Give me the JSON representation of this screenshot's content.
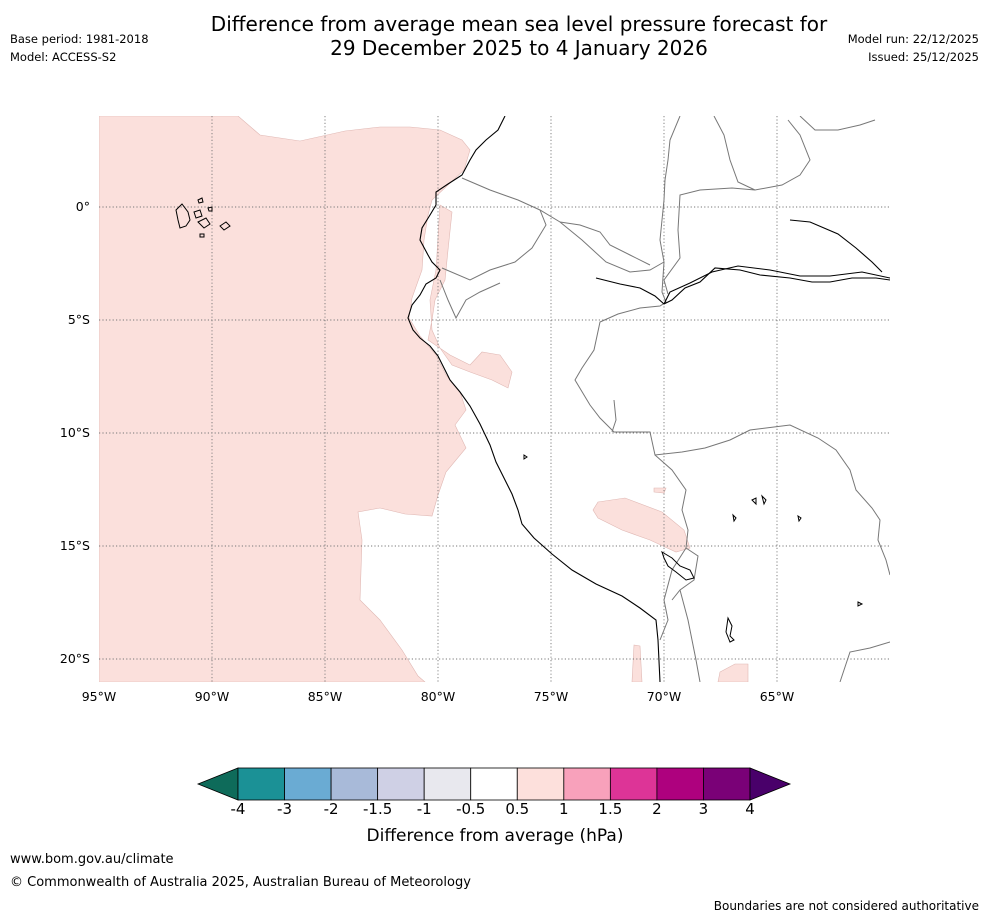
{
  "header": {
    "title_line1": "Difference from average mean sea level pressure forecast for",
    "title_line2": "29 December 2025 to 4 January 2026",
    "base_period": "Base period: 1981-2018",
    "model": "Model: ACCESS-S2",
    "model_run": "Model run: 22/12/2025",
    "issued": "Issued: 25/12/2025"
  },
  "map": {
    "lat_labels": [
      "0°",
      "5°S",
      "10°S",
      "15°S",
      "20°S"
    ],
    "lon_labels": [
      "95°W",
      "90°W",
      "85°W",
      "80°W",
      "75°W",
      "70°W",
      "65°W"
    ],
    "anomaly_region_color": "#fbe0dc",
    "anomaly_region_value_range": "0.5 to 1 hPa"
  },
  "colorbar": {
    "title": "Difference from average (hPa)",
    "tick_labels": [
      "-4",
      "-3",
      "-2",
      "-1.5",
      "-1",
      "-0.5",
      "0.5",
      "1",
      "1.5",
      "2",
      "3",
      "4"
    ],
    "colors": [
      "#0e6b5a",
      "#1b9196",
      "#6aabd3",
      "#a8bad9",
      "#cfd0e5",
      "#e8e8ee",
      "#ffffff",
      "#fde0dc",
      "#f8a1bb",
      "#dd3497",
      "#ae017e",
      "#7a0177",
      "#49006a"
    ]
  },
  "footer": {
    "website": "www.bom.gov.au/climate",
    "copyright": "© Commonwealth of Australia 2025, Australian Bureau of Meteorology",
    "disclaimer": "Boundaries are not considered authoritative"
  }
}
